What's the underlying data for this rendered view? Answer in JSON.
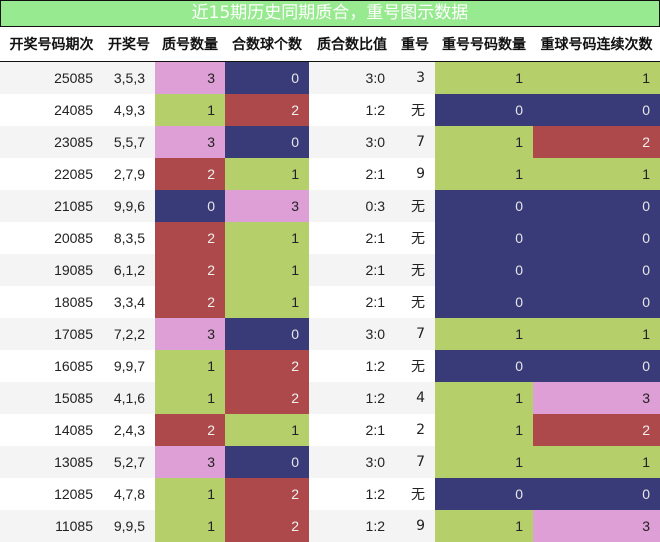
{
  "title": "近15期历史同期质合，重号图示数据",
  "headers": [
    "开奖号码期次",
    "开奖号",
    "质号数量",
    "合数球个数",
    "质合数比值",
    "重号",
    "重号号码数量",
    "重球号码连续次数"
  ],
  "colors": {
    "0": "#393B79",
    "1": "#B5CF6B",
    "2": "#AD494A",
    "3": "#DE9ED6",
    "title_bar": "#98EA90"
  },
  "rows": [
    {
      "period": "25085",
      "numbers": "3,5,3",
      "prime_count": "3",
      "composite_count": "0",
      "ratio": "3:0",
      "repeat": "3",
      "repeat_count": "1",
      "repeat_streak": "1"
    },
    {
      "period": "24085",
      "numbers": "4,9,3",
      "prime_count": "1",
      "composite_count": "2",
      "ratio": "1:2",
      "repeat": "无",
      "repeat_count": "0",
      "repeat_streak": "0"
    },
    {
      "period": "23085",
      "numbers": "5,5,7",
      "prime_count": "3",
      "composite_count": "0",
      "ratio": "3:0",
      "repeat": "7",
      "repeat_count": "1",
      "repeat_streak": "2"
    },
    {
      "period": "22085",
      "numbers": "2,7,9",
      "prime_count": "2",
      "composite_count": "1",
      "ratio": "2:1",
      "repeat": "9",
      "repeat_count": "1",
      "repeat_streak": "1"
    },
    {
      "period": "21085",
      "numbers": "9,9,6",
      "prime_count": "0",
      "composite_count": "3",
      "ratio": "0:3",
      "repeat": "无",
      "repeat_count": "0",
      "repeat_streak": "0"
    },
    {
      "period": "20085",
      "numbers": "8,3,5",
      "prime_count": "2",
      "composite_count": "1",
      "ratio": "2:1",
      "repeat": "无",
      "repeat_count": "0",
      "repeat_streak": "0"
    },
    {
      "period": "19085",
      "numbers": "6,1,2",
      "prime_count": "2",
      "composite_count": "1",
      "ratio": "2:1",
      "repeat": "无",
      "repeat_count": "0",
      "repeat_streak": "0"
    },
    {
      "period": "18085",
      "numbers": "3,3,4",
      "prime_count": "2",
      "composite_count": "1",
      "ratio": "2:1",
      "repeat": "无",
      "repeat_count": "0",
      "repeat_streak": "0"
    },
    {
      "period": "17085",
      "numbers": "7,2,2",
      "prime_count": "3",
      "composite_count": "0",
      "ratio": "3:0",
      "repeat": "7",
      "repeat_count": "1",
      "repeat_streak": "1"
    },
    {
      "period": "16085",
      "numbers": "9,9,7",
      "prime_count": "1",
      "composite_count": "2",
      "ratio": "1:2",
      "repeat": "无",
      "repeat_count": "0",
      "repeat_streak": "0"
    },
    {
      "period": "15085",
      "numbers": "4,1,6",
      "prime_count": "1",
      "composite_count": "2",
      "ratio": "1:2",
      "repeat": "4",
      "repeat_count": "1",
      "repeat_streak": "3"
    },
    {
      "period": "14085",
      "numbers": "2,4,3",
      "prime_count": "2",
      "composite_count": "1",
      "ratio": "2:1",
      "repeat": "2",
      "repeat_count": "1",
      "repeat_streak": "2"
    },
    {
      "period": "13085",
      "numbers": "5,2,7",
      "prime_count": "3",
      "composite_count": "0",
      "ratio": "3:0",
      "repeat": "7",
      "repeat_count": "1",
      "repeat_streak": "1"
    },
    {
      "period": "12085",
      "numbers": "4,7,8",
      "prime_count": "1",
      "composite_count": "2",
      "ratio": "1:2",
      "repeat": "无",
      "repeat_count": "0",
      "repeat_streak": "0"
    },
    {
      "period": "11085",
      "numbers": "9,9,5",
      "prime_count": "1",
      "composite_count": "2",
      "ratio": "1:2",
      "repeat": "9",
      "repeat_count": "1",
      "repeat_streak": "3"
    }
  ],
  "chart_data": {
    "type": "table",
    "title": "近15期历史同期质合，重号图示数据",
    "columns": [
      "开奖号码期次",
      "开奖号",
      "质号数量",
      "合数球个数",
      "质合数比值",
      "重号",
      "重号号码数量",
      "重球号码连续次数"
    ],
    "color_scale": {
      "0": "#393B79",
      "1": "#B5CF6B",
      "2": "#AD494A",
      "3": "#DE9ED6"
    },
    "heatmap_columns": [
      "质号数量",
      "合数球个数",
      "重号号码数量",
      "重球号码连续次数"
    ],
    "rows": [
      [
        "25085",
        "3,5,3",
        3,
        0,
        "3:0",
        "3",
        1,
        1
      ],
      [
        "24085",
        "4,9,3",
        1,
        2,
        "1:2",
        "无",
        0,
        0
      ],
      [
        "23085",
        "5,5,7",
        3,
        0,
        "3:0",
        "7",
        1,
        2
      ],
      [
        "22085",
        "2,7,9",
        2,
        1,
        "2:1",
        "9",
        1,
        1
      ],
      [
        "21085",
        "9,9,6",
        0,
        3,
        "0:3",
        "无",
        0,
        0
      ],
      [
        "20085",
        "8,3,5",
        2,
        1,
        "2:1",
        "无",
        0,
        0
      ],
      [
        "19085",
        "6,1,2",
        2,
        1,
        "2:1",
        "无",
        0,
        0
      ],
      [
        "18085",
        "3,3,4",
        2,
        1,
        "2:1",
        "无",
        0,
        0
      ],
      [
        "17085",
        "7,2,2",
        3,
        0,
        "3:0",
        "7",
        1,
        1
      ],
      [
        "16085",
        "9,9,7",
        1,
        2,
        "1:2",
        "无",
        0,
        0
      ],
      [
        "15085",
        "4,1,6",
        1,
        2,
        "1:2",
        "4",
        1,
        3
      ],
      [
        "14085",
        "2,4,3",
        2,
        1,
        "2:1",
        "2",
        1,
        2
      ],
      [
        "13085",
        "5,2,7",
        3,
        0,
        "3:0",
        "7",
        1,
        1
      ],
      [
        "12085",
        "4,7,8",
        1,
        2,
        "1:2",
        "无",
        0,
        0
      ],
      [
        "11085",
        "9,9,5",
        1,
        2,
        "1:2",
        "9",
        1,
        3
      ]
    ]
  }
}
